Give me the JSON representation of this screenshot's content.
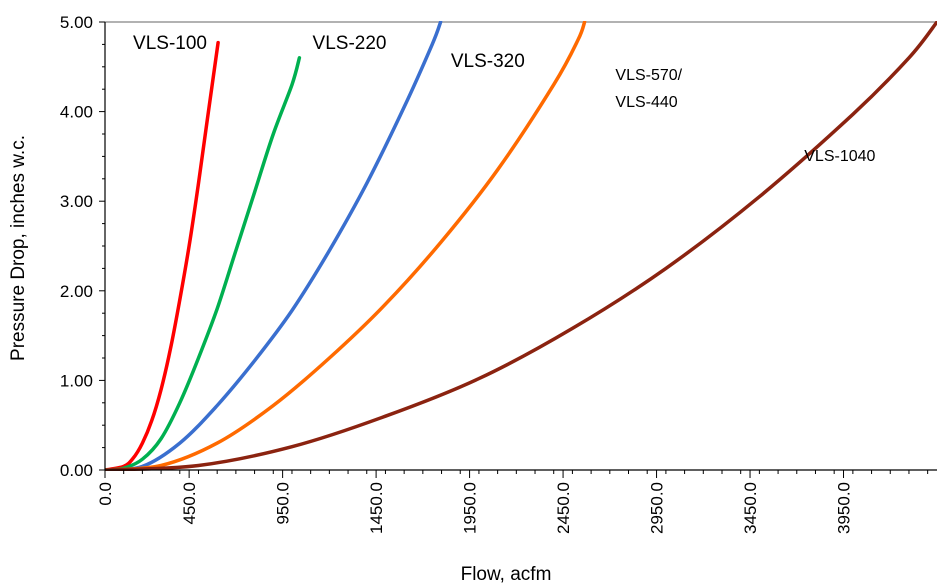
{
  "chart_data": {
    "type": "line",
    "xlabel": "Flow, acfm",
    "ylabel": "Pressure Drop, inches w.c.",
    "xlim": [
      0,
      4450
    ],
    "ylim": [
      0,
      5
    ],
    "x_ticks": [
      0,
      450,
      950,
      1450,
      1950,
      2450,
      2950,
      3450,
      3950
    ],
    "x_tick_labels": [
      "0.0",
      "450.0",
      "950.0",
      "1450.0",
      "1950.0",
      "2450.0",
      "2950.0",
      "3450.0",
      "3950.0"
    ],
    "y_ticks": [
      0,
      1,
      2,
      3,
      4,
      5
    ],
    "y_tick_labels": [
      "0.00",
      "1.00",
      "2.00",
      "3.00",
      "4.00",
      "5.00"
    ],
    "grid": "vertical-minor-ticks",
    "series": [
      {
        "name": "VLS-100",
        "color": "#ff0000",
        "points": [
          [
            0,
            0
          ],
          [
            100,
            0.04
          ],
          [
            150,
            0.13
          ],
          [
            200,
            0.3
          ],
          [
            250,
            0.55
          ],
          [
            300,
            0.9
          ],
          [
            350,
            1.35
          ],
          [
            400,
            1.9
          ],
          [
            450,
            2.5
          ],
          [
            500,
            3.2
          ],
          [
            550,
            3.95
          ],
          [
            605,
            4.77
          ]
        ]
      },
      {
        "name": "VLS-220",
        "color": "#00b050",
        "points": [
          [
            0,
            0
          ],
          [
            100,
            0.02
          ],
          [
            200,
            0.12
          ],
          [
            300,
            0.35
          ],
          [
            400,
            0.75
          ],
          [
            500,
            1.25
          ],
          [
            600,
            1.8
          ],
          [
            700,
            2.45
          ],
          [
            800,
            3.1
          ],
          [
            900,
            3.75
          ],
          [
            1000,
            4.3
          ],
          [
            1040,
            4.6
          ]
        ]
      },
      {
        "name": "VLS-320",
        "color": "#3a6fcf",
        "points": [
          [
            0,
            0
          ],
          [
            200,
            0.04
          ],
          [
            400,
            0.3
          ],
          [
            600,
            0.72
          ],
          [
            800,
            1.22
          ],
          [
            1000,
            1.78
          ],
          [
            1200,
            2.45
          ],
          [
            1400,
            3.2
          ],
          [
            1600,
            4.05
          ],
          [
            1750,
            4.75
          ],
          [
            1795,
            5.0
          ]
        ]
      },
      {
        "name": "VLS-570/ VLS-440",
        "color": "#ff6a00",
        "points": [
          [
            0,
            0
          ],
          [
            300,
            0.05
          ],
          [
            600,
            0.3
          ],
          [
            900,
            0.72
          ],
          [
            1200,
            1.25
          ],
          [
            1500,
            1.85
          ],
          [
            1800,
            2.55
          ],
          [
            2100,
            3.35
          ],
          [
            2400,
            4.3
          ],
          [
            2530,
            4.8
          ],
          [
            2565,
            5.0
          ]
        ]
      },
      {
        "name": "VLS-1040",
        "color": "#8b2310",
        "points": [
          [
            0,
            0
          ],
          [
            500,
            0.05
          ],
          [
            1000,
            0.26
          ],
          [
            1500,
            0.6
          ],
          [
            2000,
            1.02
          ],
          [
            2500,
            1.58
          ],
          [
            3000,
            2.25
          ],
          [
            3500,
            3.05
          ],
          [
            4000,
            3.97
          ],
          [
            4300,
            4.6
          ],
          [
            4450,
            5.0
          ]
        ]
      }
    ],
    "labels": [
      {
        "text": "VLS-100",
        "series": 0,
        "x": 150,
        "y": 4.7
      },
      {
        "text": "VLS-220",
        "series": 1,
        "x": 1110,
        "y": 4.7
      },
      {
        "text": "VLS-320",
        "series": 2,
        "x": 1850,
        "y": 4.5
      },
      {
        "text": "VLS-570/",
        "series": 3,
        "x": 2730,
        "y": 4.35
      },
      {
        "text": "VLS-440",
        "series": 3,
        "x": 2730,
        "y": 4.05
      },
      {
        "text": "VLS-1040",
        "series": 4,
        "x": 3740,
        "y": 3.45
      }
    ]
  }
}
